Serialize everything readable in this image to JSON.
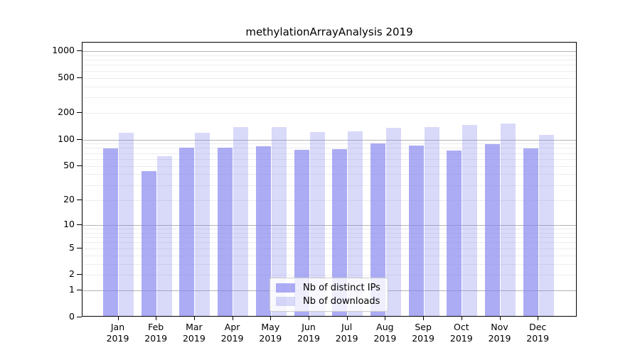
{
  "chart_data": {
    "type": "bar",
    "title": "methylationArrayAnalysis 2019",
    "categories": [
      "Jan 2019",
      "Feb 2019",
      "Mar 2019",
      "Apr 2019",
      "May 2019",
      "Jun 2019",
      "Jul 2019",
      "Aug 2019",
      "Sep 2019",
      "Oct 2019",
      "Nov 2019",
      "Dec 2019"
    ],
    "series": [
      {
        "name": "Nb of distinct IPs",
        "color": "#8080f0",
        "alpha": 0.65,
        "values": [
          76,
          42,
          78,
          78,
          81,
          74,
          75,
          87,
          82,
          72,
          86,
          76
        ]
      },
      {
        "name": "Nb of downloads",
        "color": "#8080f0",
        "alpha": 0.3,
        "values": [
          115,
          62,
          115,
          133,
          133,
          117,
          119,
          131,
          133,
          141,
          146,
          108
        ]
      }
    ],
    "xlabel": "",
    "ylabel": "",
    "ylim": [
      0,
      1000
    ],
    "yscale": "log1p",
    "y_ticks": [
      0,
      1,
      2,
      5,
      10,
      20,
      50,
      100,
      200,
      500,
      1000
    ],
    "major_gridlines": [
      1,
      10,
      100,
      1000
    ],
    "minor_gridlines": [
      2,
      3,
      4,
      5,
      6,
      7,
      8,
      9,
      20,
      30,
      40,
      50,
      60,
      70,
      80,
      90,
      200,
      300,
      400,
      500,
      600,
      700,
      800,
      900
    ],
    "grid": true,
    "legend_position": "lower center",
    "colors": {
      "major_grid": "#b4b4b4",
      "minor_grid": "#ededed",
      "axis": "#000000",
      "text": "#000000",
      "background": "#ffffff",
      "legend_border": "#cccccc"
    }
  }
}
